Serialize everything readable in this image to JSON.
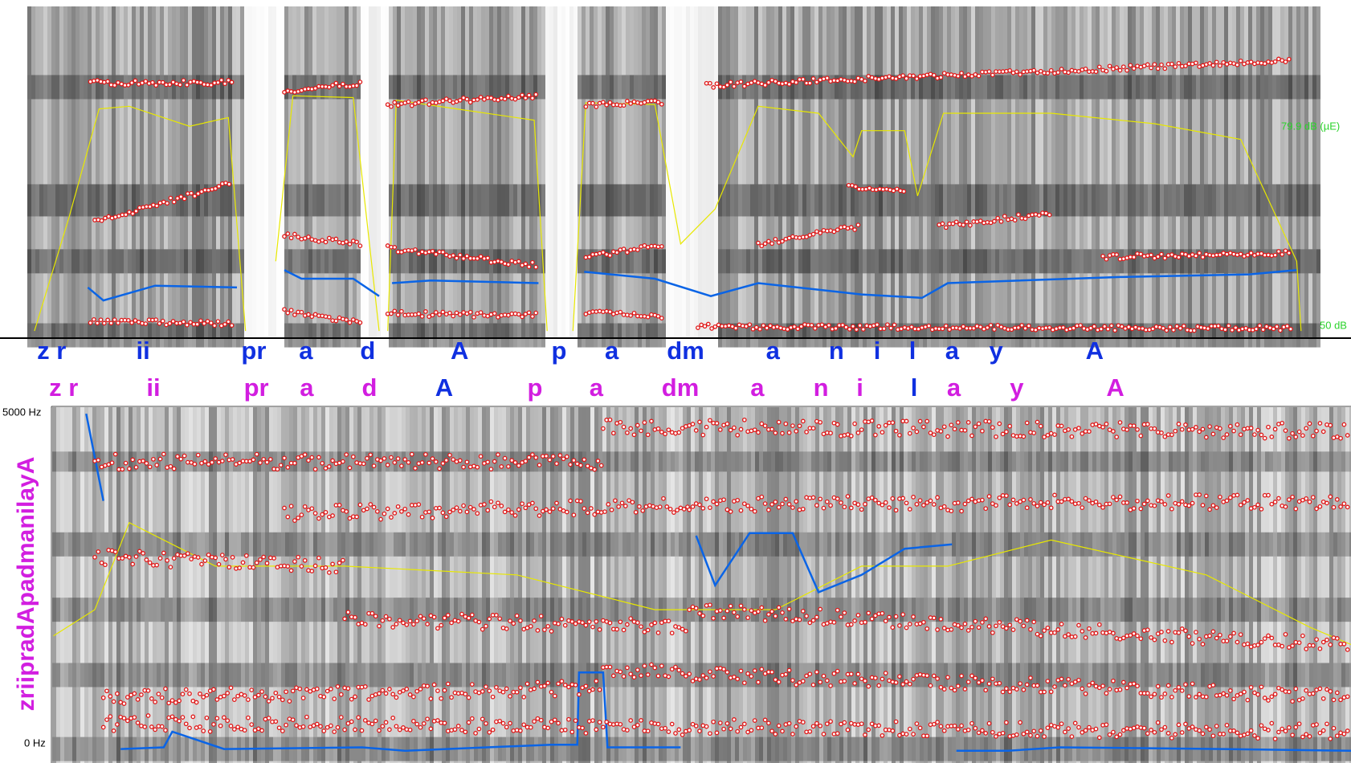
{
  "top_panel": {
    "level_max_label": "79.9 dB (µE)",
    "level_min_label": "50 dB"
  },
  "tiers": [
    {
      "labels": [
        "z r",
        "ii",
        "pr",
        "a",
        "d",
        "A",
        "p",
        "a",
        "dm",
        "a",
        "n",
        "i",
        "l",
        "a",
        "y",
        "A"
      ]
    },
    {
      "labels": [
        "z r",
        "ii",
        "pr",
        "a",
        "d",
        "A",
        "p",
        "a",
        "dm",
        "a",
        "n",
        "i",
        "l",
        "a",
        "y",
        "A"
      ]
    }
  ],
  "bottom_panel": {
    "freq_max_label": "5000 Hz",
    "freq_min_label": "0 Hz",
    "side_label": "zriipradApadmanilayA"
  }
}
